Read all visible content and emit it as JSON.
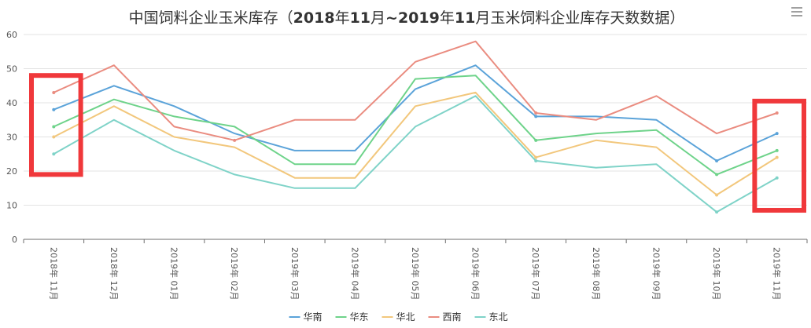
{
  "chart_data": {
    "type": "line",
    "title_parts": [
      {
        "text": "中国饲料企业玉米库存（",
        "bold": false
      },
      {
        "text": "2018",
        "bold": true
      },
      {
        "text": "年",
        "bold": false
      },
      {
        "text": "11",
        "bold": true
      },
      {
        "text": "月",
        "bold": false
      },
      {
        "text": "~2019",
        "bold": true
      },
      {
        "text": "年",
        "bold": false
      },
      {
        "text": "11",
        "bold": true
      },
      {
        "text": "月玉米饲料企业库存天数数据）",
        "bold": false
      }
    ],
    "categories": [
      "2018年 11月",
      "2018年 12月",
      "2019年 01月",
      "2019年 02月",
      "2019年 03月",
      "2019年 04月",
      "2019年 05月",
      "2019年 06月",
      "2019年 07月",
      "2019年 08月",
      "2019年 09月",
      "2019年 10月",
      "2019年 11月"
    ],
    "ylim": [
      0,
      60
    ],
    "yticks": [
      "0",
      "10",
      "20",
      "30",
      "40",
      "50",
      "60"
    ],
    "grid": true,
    "legend_position": "bottom",
    "series": [
      {
        "name": "华南",
        "color": "#5ba3d9",
        "values": [
          38,
          45,
          39,
          31,
          26,
          26,
          44,
          51,
          36,
          36,
          35,
          23,
          31
        ]
      },
      {
        "name": "华东",
        "color": "#6ed38a",
        "values": [
          33,
          41,
          36,
          33,
          22,
          22,
          47,
          48,
          29,
          31,
          32,
          19,
          26
        ]
      },
      {
        "name": "华北",
        "color": "#f2c77c",
        "values": [
          30,
          39,
          30,
          27,
          18,
          18,
          39,
          43,
          24,
          29,
          27,
          13,
          24
        ]
      },
      {
        "name": "西南",
        "color": "#ea8c80",
        "values": [
          43,
          51,
          33,
          29,
          35,
          35,
          52,
          58,
          37,
          35,
          42,
          31,
          37
        ]
      },
      {
        "name": "东北",
        "color": "#7fd3c8",
        "values": [
          25,
          35,
          26,
          19,
          15,
          15,
          33,
          42,
          23,
          21,
          22,
          8,
          18
        ]
      }
    ],
    "highlight_boxes": [
      {
        "from_category": 0,
        "to_category": 0,
        "y_from": 19,
        "y_to": 48,
        "color": "#f0383b"
      },
      {
        "from_category": 12,
        "to_category": 12,
        "y_from": 8.5,
        "y_to": 40.5,
        "color": "#f0383b"
      }
    ]
  },
  "toolbar": {
    "menu_icon": "hamburger-menu-icon"
  }
}
